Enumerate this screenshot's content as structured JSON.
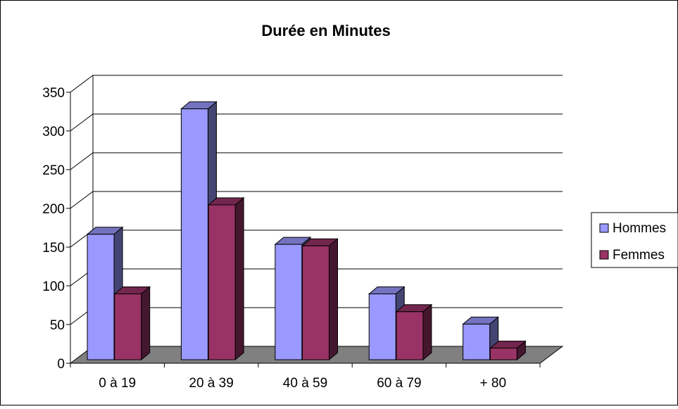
{
  "chart_data": {
    "type": "bar",
    "title": "Durée en Minutes",
    "categories": [
      "0 à 19",
      "20 à 39",
      "40 à 59",
      "60 à 79",
      "+ 80"
    ],
    "series": [
      {
        "name": "Hommes",
        "values": [
          162,
          324,
          149,
          85,
          46
        ],
        "color": "#9999ff"
      },
      {
        "name": "Femmes",
        "values": [
          85,
          200,
          147,
          62,
          15
        ],
        "color": "#993366"
      }
    ],
    "ylim": [
      0,
      350
    ],
    "yticks": [
      0,
      50,
      100,
      150,
      200,
      250,
      300,
      350
    ],
    "grid": true,
    "three_d": true,
    "legend_position": "right"
  }
}
